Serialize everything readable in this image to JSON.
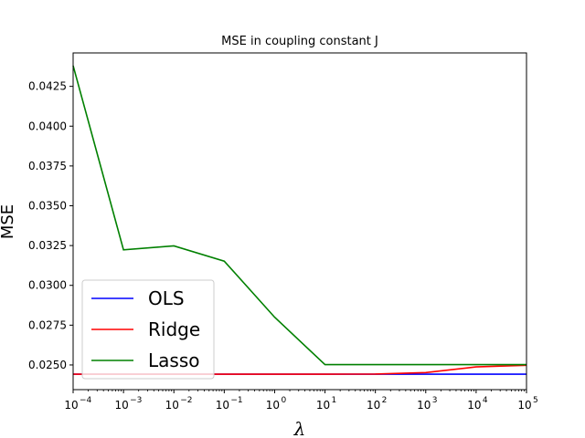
{
  "chart_data": {
    "type": "line",
    "title": "MSE in coupling constant J",
    "xlabel": "λ",
    "ylabel": "MSE",
    "x_scale": "log",
    "xlim": [
      0.0001,
      100000
    ],
    "ylim": [
      0.02345,
      0.0446
    ],
    "x": [
      0.0001,
      0.001,
      0.01,
      0.1,
      1,
      10,
      100,
      1000,
      10000,
      100000
    ],
    "x_tick_labels": [
      {
        "base": "10",
        "exp": "−4"
      },
      {
        "base": "10",
        "exp": "−3"
      },
      {
        "base": "10",
        "exp": "−2"
      },
      {
        "base": "10",
        "exp": "−1"
      },
      {
        "base": "10",
        "exp": "0"
      },
      {
        "base": "10",
        "exp": "1"
      },
      {
        "base": "10",
        "exp": "2"
      },
      {
        "base": "10",
        "exp": "3"
      },
      {
        "base": "10",
        "exp": "4"
      },
      {
        "base": "10",
        "exp": "5"
      }
    ],
    "y_ticks": [
      0.025,
      0.0275,
      0.03,
      0.0325,
      0.035,
      0.0375,
      0.04,
      0.0425
    ],
    "y_tick_labels": [
      "0.0250",
      "0.0275",
      "0.0300",
      "0.0325",
      "0.0350",
      "0.0375",
      "0.0400",
      "0.0425"
    ],
    "grid": false,
    "legend_position": "lower-left",
    "series": [
      {
        "name": "OLS",
        "color": "#0000ff",
        "values": [
          0.02442,
          0.02442,
          0.02442,
          0.02442,
          0.02442,
          0.02442,
          0.02442,
          0.02442,
          0.02442,
          0.02442
        ]
      },
      {
        "name": "Ridge",
        "color": "#ff0000",
        "values": [
          0.02442,
          0.02442,
          0.02442,
          0.02442,
          0.02442,
          0.02442,
          0.02443,
          0.02452,
          0.02488,
          0.02498
        ]
      },
      {
        "name": "Lasso",
        "color": "#008000",
        "values": [
          0.0438,
          0.03223,
          0.03248,
          0.03152,
          0.028,
          0.02502,
          0.02502,
          0.02502,
          0.02502,
          0.02502
        ]
      }
    ]
  }
}
